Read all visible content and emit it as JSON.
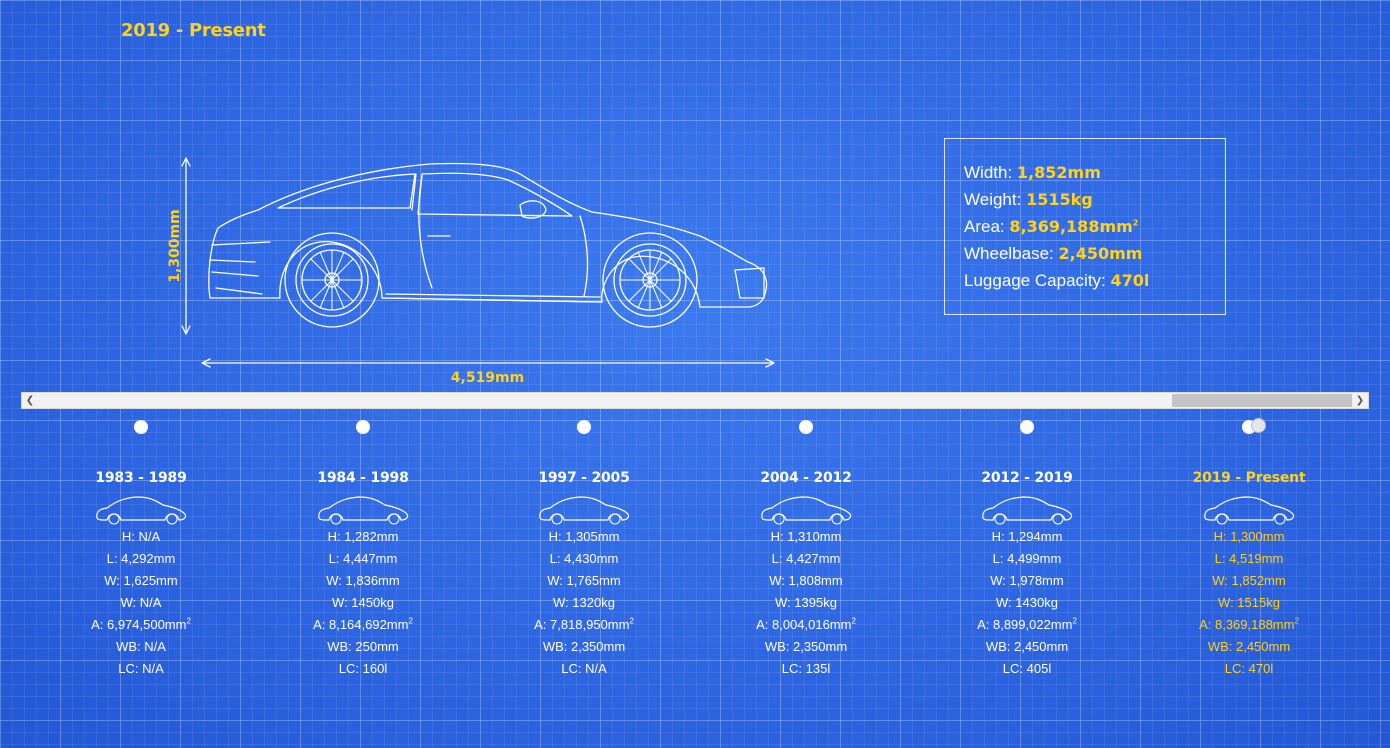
{
  "header": {
    "era": "2019 - Present"
  },
  "blueprint": {
    "height_label": "1,300mm",
    "length_label": "4,519mm"
  },
  "spec_box": [
    {
      "label": "Width: ",
      "value": "1,852mm"
    },
    {
      "label": "Weight: ",
      "value": "1515kg"
    },
    {
      "label": "Area: ",
      "value": "8,369,188mm",
      "sup": "2"
    },
    {
      "label": "Wheelbase: ",
      "value": "2,450mm"
    },
    {
      "label": "Luggage Capacity: ",
      "value": "470l"
    }
  ],
  "timeline": [
    {
      "years": "1983 - 1989",
      "h": "H: N/A",
      "l": "L: 4,292mm",
      "w": "W: 1,625mm",
      "wt": "W: N/A",
      "a": "A: 6,974,500mm",
      "wb": "WB: N/A",
      "lc": "LC: N/A"
    },
    {
      "years": "1984 - 1998",
      "h": "H: 1,282mm",
      "l": "L: 4,447mm",
      "w": "W: 1,836mm",
      "wt": "W: 1450kg",
      "a": "A: 8,164,692mm",
      "wb": "WB: 250mm",
      "lc": "LC: 160l"
    },
    {
      "years": "1997 - 2005",
      "h": "H: 1,305mm",
      "l": "L: 4,430mm",
      "w": "W: 1,765mm",
      "wt": "W: 1320kg",
      "a": "A: 7,818,950mm",
      "wb": "WB: 2,350mm",
      "lc": "LC: N/A"
    },
    {
      "years": "2004 - 2012",
      "h": "H: 1,310mm",
      "l": "L: 4,427mm",
      "w": "W: 1,808mm",
      "wt": "W: 1395kg",
      "a": "A: 8,004,016mm",
      "wb": "WB: 2,350mm",
      "lc": "LC: 135l"
    },
    {
      "years": "2012 - 2019",
      "h": "H: 1,294mm",
      "l": "L: 4,499mm",
      "w": "W: 1,978mm",
      "wt": "W: 1430kg",
      "a": "A: 8,899,022mm",
      "wb": "WB: 2,450mm",
      "lc": "LC: 405l"
    },
    {
      "years": "2019 - Present",
      "h": "H: 1,300mm",
      "l": "L: 4,519mm",
      "w": "W: 1,852mm",
      "wt": "W: 1515kg",
      "a": "A: 8,369,188mm",
      "wb": "WB: 2,450mm",
      "lc": "LC: 470l"
    }
  ],
  "sup_text": "2",
  "colors": {
    "accent": "#ffd21c",
    "background": "#2f6be6"
  },
  "icons": {
    "scroll_left": "chevron-left-icon",
    "scroll_right": "chevron-right-icon"
  }
}
